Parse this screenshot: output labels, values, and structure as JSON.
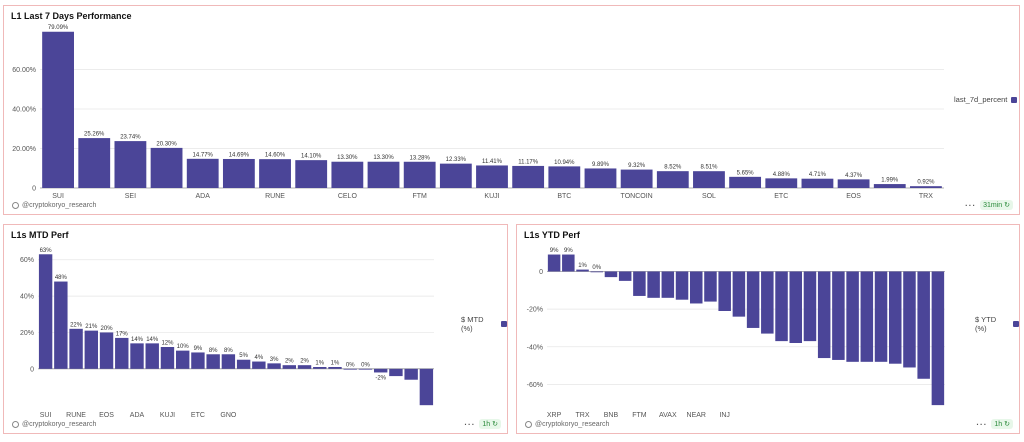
{
  "colors": {
    "bar": "#4b4598",
    "grid": "#e6e6e6",
    "axis": "#555555",
    "badge_bg": "#e7f7e9",
    "badge_fg": "#2a8a3a"
  },
  "panels": [
    {
      "title": "L1 Last 7 Days Performance",
      "attribution": "@cryptokoryo_research",
      "badge": "31min",
      "legend": "last_7d_percent"
    },
    {
      "title": "L1s MTD Perf",
      "attribution": "@cryptokoryo_research",
      "badge": "1h",
      "legend": "$ MTD (%)"
    },
    {
      "title": "L1s YTD Perf",
      "attribution": "@cryptokoryo_research",
      "badge": "1h",
      "legend": "$ YTD (%)"
    }
  ],
  "chart_data": [
    {
      "type": "bar",
      "title": "L1 Last 7 Days Performance",
      "series": [
        {
          "name": "last_7d_percent",
          "values": [
            79.09,
            25.26,
            23.74,
            20.3,
            14.77,
            14.69,
            14.6,
            14.1,
            13.3,
            13.3,
            13.28,
            12.33,
            11.41,
            11.17,
            10.94,
            9.89,
            9.32,
            8.52,
            8.51,
            5.65,
            4.88,
            4.71,
            4.37,
            1.99,
            0.92
          ]
        }
      ],
      "data_labels": [
        "79.09%",
        "25.26%",
        "23.74%",
        "20.30%",
        "14.77%",
        "14.69%",
        "14.60%",
        "14.10%",
        "13.30%",
        "13.30%",
        "13.28%",
        "12.33%",
        "11.41%",
        "11.17%",
        "10.94%",
        "9.89%",
        "9.32%",
        "8.52%",
        "8.51%",
        "5.65%",
        "4.88%",
        "4.71%",
        "4.37%",
        "1.99%",
        "0.92%"
      ],
      "x_tick_labels": [
        "SUI",
        "SEI",
        "ADA",
        "RUNE",
        "CELO",
        "FTM",
        "KUJI",
        "BTC",
        "TONCOIN",
        "SOL",
        "ETC",
        "EOS",
        "TRX"
      ],
      "y_ticks": [
        0,
        20,
        40,
        60
      ],
      "y_tick_labels": [
        "0",
        "20.00%",
        "40.00%",
        "60.00%"
      ],
      "ylim": [
        0,
        82
      ],
      "grid": true,
      "legend_position": "right"
    },
    {
      "type": "bar",
      "title": "L1s MTD Perf",
      "series": [
        {
          "name": "$ MTD (%)",
          "values": [
            63,
            48,
            22,
            21,
            20,
            17,
            14,
            14,
            12,
            10,
            9,
            8,
            8,
            5,
            4,
            3,
            2,
            2,
            1,
            1,
            0,
            0,
            -2,
            -4,
            -6,
            -20
          ]
        }
      ],
      "data_labels": [
        "63%",
        "48%",
        "22%",
        "21%",
        "20%",
        "17%",
        "14%",
        "14%",
        "12%",
        "10%",
        "9%",
        "8%",
        "8%",
        "5%",
        "4%",
        "3%",
        "2%",
        "2%",
        "1%",
        "1%",
        "0%",
        "0%",
        "-2%",
        "",
        "",
        ""
      ],
      "x_tick_labels": [
        "SUI",
        "RUNE",
        "EOS",
        "ADA",
        "KUJI",
        "ETC",
        "GNO"
      ],
      "y_ticks": [
        0,
        20,
        40,
        60
      ],
      "y_tick_labels": [
        "0",
        "20%",
        "40%",
        "60%"
      ],
      "ylim": [
        -21,
        67
      ],
      "grid": true,
      "legend_position": "right"
    },
    {
      "type": "bar",
      "title": "L1s YTD Perf",
      "series": [
        {
          "name": "$ YTD (%)",
          "values": [
            9,
            9,
            1,
            0,
            -3,
            -5,
            -13,
            -14,
            -14,
            -15,
            -17,
            -16,
            -21,
            -24,
            -30,
            -33,
            -37,
            -38,
            -37,
            -46,
            -47,
            -48,
            -48,
            -48,
            -49,
            -51,
            -57,
            -71
          ]
        }
      ],
      "data_labels": [
        "9%",
        "9%",
        "1%",
        "0%",
        "",
        "",
        "",
        "",
        "",
        "",
        "",
        "",
        "",
        "",
        "",
        "",
        "",
        "",
        "",
        "",
        "",
        "",
        "",
        "",
        "",
        "",
        "",
        ""
      ],
      "x_tick_labels": [
        "XRP",
        "TRX",
        "BNB",
        "FTM",
        "AVAX",
        "NEAR",
        "INJ"
      ],
      "y_ticks": [
        0,
        -20,
        -40,
        -60
      ],
      "y_tick_labels": [
        "0",
        "-20%",
        "-40%",
        "-60%"
      ],
      "ylim": [
        -72,
        13
      ],
      "grid": true,
      "legend_position": "right"
    }
  ]
}
